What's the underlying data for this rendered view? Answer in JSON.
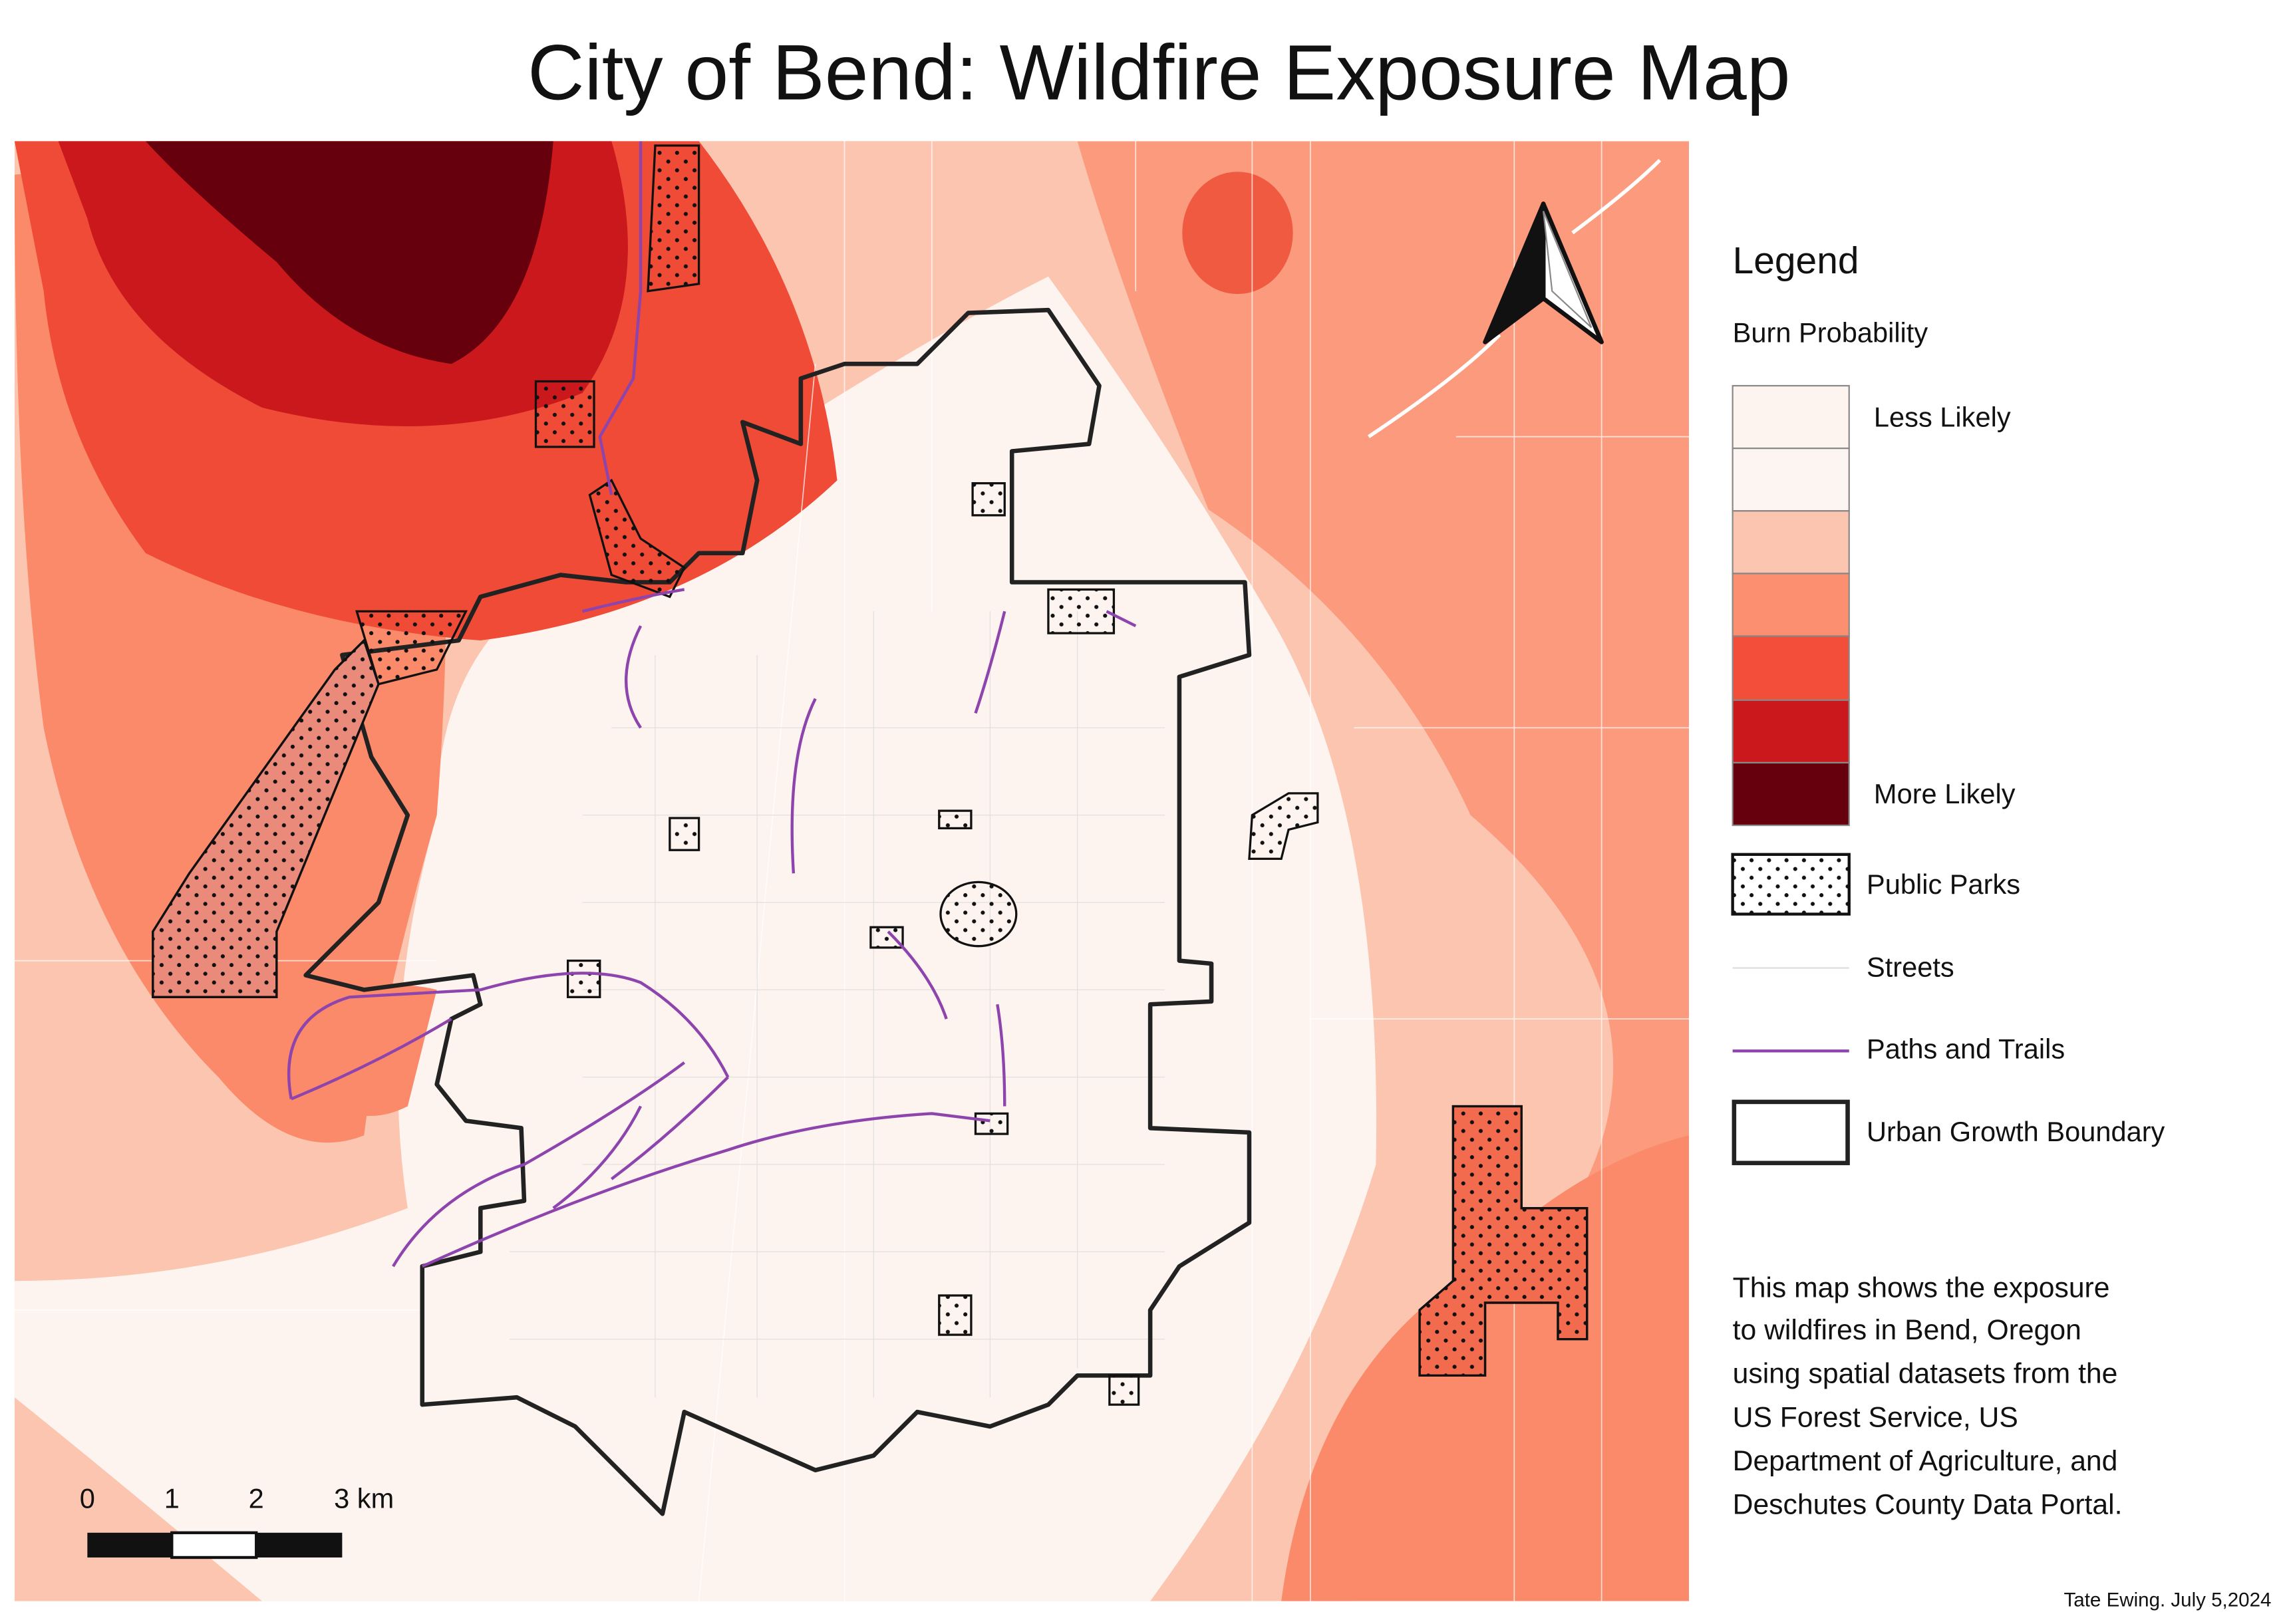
{
  "header": {
    "title": "City of Bend: Wildfire Exposure Map"
  },
  "legend": {
    "title": "Legend",
    "subtitle": "Burn Probability",
    "ramp": {
      "low_label": "Less Likely",
      "high_label": "More Likely"
    },
    "items": [
      {
        "label": "Public Parks"
      },
      {
        "label": "Streets"
      },
      {
        "label": "Paths and Trails"
      },
      {
        "label": "Urban Growth Boundary"
      }
    ]
  },
  "description": [
    "This map shows the exposure",
    "to wildfires in Bend, Oregon",
    "using spatial datasets from the",
    "US Forest Service, US",
    "Department of Agriculture, and",
    "Deschutes County Data Portal."
  ],
  "scale_bar": {
    "labels": [
      "0",
      "1",
      "2",
      "3 km"
    ]
  },
  "credit": "Tate Ewing. July 5,2024"
}
